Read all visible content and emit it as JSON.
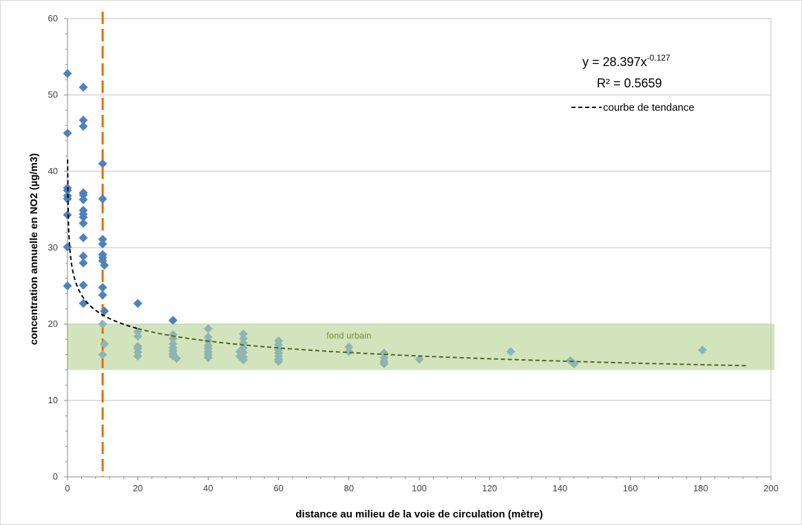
{
  "chart_data": {
    "type": "scatter",
    "title": "",
    "xlabel": "distance au milieu de la voie de circulation (mètre)",
    "ylabel": "concentration annuelle  en NO2 (µg/m3)",
    "xlim": [
      0,
      200
    ],
    "ylim": [
      0,
      60
    ],
    "x_ticks": [
      "0",
      "20",
      "40",
      "60",
      "80",
      "100",
      "120",
      "140",
      "160",
      "180",
      "200"
    ],
    "y_ticks": [
      "0",
      "10",
      "20",
      "30",
      "40",
      "50",
      "60"
    ],
    "grid": "horizontal",
    "colors": {
      "point_above_band": "#4f81bd",
      "point_in_band": "#8fb5b0",
      "band": "#d2e4bc",
      "band_label": "#76923c",
      "threshold_line": "#e36c0a",
      "trend_near": "#000000",
      "trend_far": "#4f6228"
    },
    "series": [
      {
        "points": [
          [
            0,
            52.8
          ],
          [
            0,
            45
          ],
          [
            0,
            37.8
          ],
          [
            0,
            37.5
          ],
          [
            0,
            36.8
          ],
          [
            0,
            36.4
          ],
          [
            0,
            34.3
          ],
          [
            0,
            30.1
          ],
          [
            0,
            25
          ],
          [
            4.5,
            51
          ],
          [
            4.5,
            46.7
          ],
          [
            4.5,
            45.9
          ],
          [
            4.5,
            37.2
          ],
          [
            4.5,
            36.9
          ],
          [
            4.5,
            36.3
          ],
          [
            4.5,
            34.9
          ],
          [
            4.5,
            34.4
          ],
          [
            4.5,
            34
          ],
          [
            4.5,
            33.2
          ],
          [
            4.5,
            31.3
          ],
          [
            4.5,
            28.9
          ],
          [
            4.5,
            28
          ],
          [
            4.5,
            25.1
          ],
          [
            4.5,
            22.7
          ],
          [
            10,
            41
          ],
          [
            10,
            36.4
          ],
          [
            10,
            31.1
          ],
          [
            10,
            30.5
          ],
          [
            10,
            29.1
          ],
          [
            10,
            28.7
          ],
          [
            10,
            28.3
          ],
          [
            10,
            24.8
          ],
          [
            10,
            23.8
          ],
          [
            10,
            20
          ],
          [
            10,
            16
          ],
          [
            10.5,
            27.7
          ],
          [
            10.5,
            21.7
          ],
          [
            10.5,
            17.4
          ],
          [
            20,
            22.7
          ],
          [
            20,
            19
          ],
          [
            20,
            18.4
          ],
          [
            20,
            17.1
          ],
          [
            20,
            16.8
          ],
          [
            20,
            16.3
          ],
          [
            20,
            15.8
          ],
          [
            30,
            20.5
          ],
          [
            30,
            18.6
          ],
          [
            30,
            18.1
          ],
          [
            30,
            17.4
          ],
          [
            30,
            16.9
          ],
          [
            30,
            16.5
          ],
          [
            30,
            16.1
          ],
          [
            30,
            15.8
          ],
          [
            31,
            15.5
          ],
          [
            40,
            19.4
          ],
          [
            40,
            18.3
          ],
          [
            40,
            17.8
          ],
          [
            40,
            17.2
          ],
          [
            40,
            16.8
          ],
          [
            40,
            16.4
          ],
          [
            40,
            16
          ],
          [
            40,
            15.6
          ],
          [
            49,
            16.4
          ],
          [
            49,
            15.8
          ],
          [
            50,
            18.7
          ],
          [
            50,
            18.1
          ],
          [
            50,
            17.5
          ],
          [
            50,
            16.9
          ],
          [
            50,
            16.3
          ],
          [
            50,
            15.7
          ],
          [
            50,
            15.3
          ],
          [
            60,
            17.8
          ],
          [
            60,
            17.3
          ],
          [
            60,
            16.6
          ],
          [
            60,
            16.2
          ],
          [
            60,
            15.8
          ],
          [
            60,
            15.4
          ],
          [
            60,
            15.1
          ],
          [
            80,
            17
          ],
          [
            80,
            16.4
          ],
          [
            90,
            16.2
          ],
          [
            90,
            15.6
          ],
          [
            90,
            15.1
          ],
          [
            90,
            14.8
          ],
          [
            100,
            15.4
          ],
          [
            126,
            16.4
          ],
          [
            143,
            15.2
          ],
          [
            144,
            14.8
          ],
          [
            180.5,
            16.6
          ]
        ]
      }
    ],
    "band": {
      "y_from": 14,
      "y_to": 20,
      "label": "fond urbain"
    },
    "threshold_line": {
      "x": 10
    },
    "trendline": {
      "a": 28.397,
      "b": -0.127,
      "x_max": 193,
      "equation": "y = 28.397x",
      "equation_exponent": "-0.127",
      "r2": "R² = 0.5659",
      "legend_label": "courbe de tendance"
    }
  }
}
